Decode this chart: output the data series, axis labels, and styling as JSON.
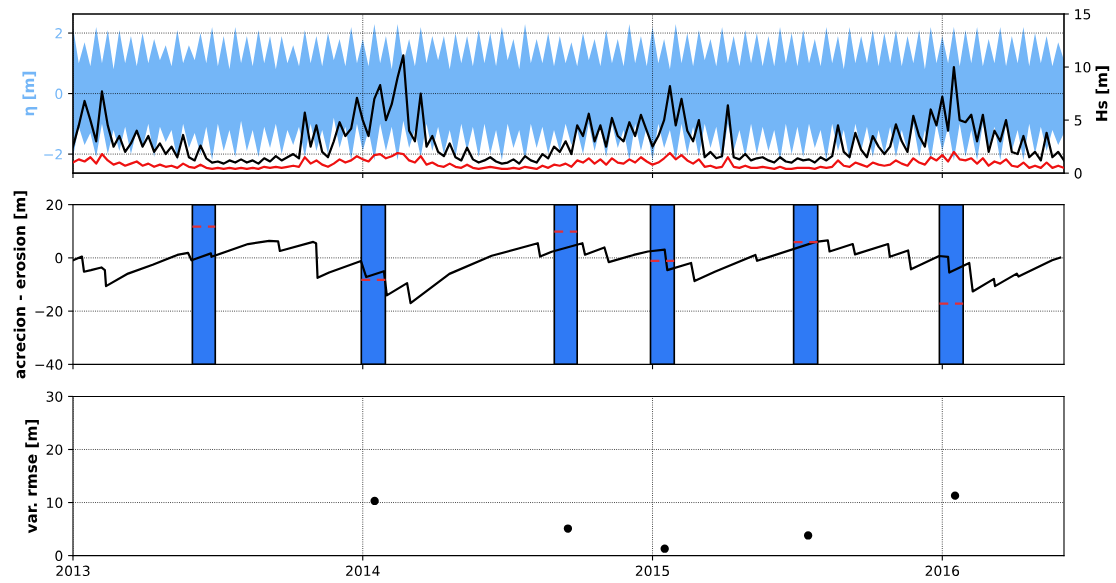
{
  "chart_data": [
    {
      "type": "line",
      "ylabel": "η [m]",
      "y2label": "Hs [m]",
      "xlim": [
        2013.0,
        2016.42
      ],
      "xticks": [
        2013,
        2014,
        2015,
        2016
      ],
      "ylim": [
        -2.63,
        2.63
      ],
      "yticks": [
        {
          "value": -2,
          "label": "−2"
        },
        0,
        2
      ],
      "y2lim": [
        0,
        15
      ],
      "y2ticks": [
        0,
        5,
        10,
        15
      ],
      "grid": true,
      "tick_labels": "y",
      "x": [
        2013.0,
        2013.02,
        2013.04,
        2013.06,
        2013.08,
        2013.1,
        2013.12,
        2013.14,
        2013.16,
        2013.18,
        2013.2,
        2013.22,
        2013.24,
        2013.26,
        2013.28,
        2013.3,
        2013.32,
        2013.34,
        2013.36,
        2013.38,
        2013.4,
        2013.42,
        2013.44,
        2013.46,
        2013.48,
        2013.5,
        2013.52,
        2013.54,
        2013.56,
        2013.58,
        2013.6,
        2013.62,
        2013.64,
        2013.66,
        2013.68,
        2013.7,
        2013.72,
        2013.74,
        2013.76,
        2013.78,
        2013.8,
        2013.82,
        2013.84,
        2013.86,
        2013.88,
        2013.9,
        2013.92,
        2013.94,
        2013.96,
        2013.98,
        2014.0,
        2014.02,
        2014.04,
        2014.06,
        2014.08,
        2014.1,
        2014.12,
        2014.14,
        2014.16,
        2014.18,
        2014.2,
        2014.22,
        2014.24,
        2014.26,
        2014.28,
        2014.3,
        2014.32,
        2014.34,
        2014.36,
        2014.38,
        2014.4,
        2014.42,
        2014.44,
        2014.46,
        2014.48,
        2014.5,
        2014.52,
        2014.54,
        2014.56,
        2014.58,
        2014.6,
        2014.62,
        2014.64,
        2014.66,
        2014.68,
        2014.7,
        2014.72,
        2014.74,
        2014.76,
        2014.78,
        2014.8,
        2014.82,
        2014.84,
        2014.86,
        2014.88,
        2014.9,
        2014.92,
        2014.94,
        2014.96,
        2014.98,
        2015.0,
        2015.02,
        2015.04,
        2015.06,
        2015.08,
        2015.1,
        2015.12,
        2015.14,
        2015.16,
        2015.18,
        2015.2,
        2015.22,
        2015.24,
        2015.26,
        2015.28,
        2015.3,
        2015.32,
        2015.34,
        2015.36,
        2015.38,
        2015.4,
        2015.42,
        2015.44,
        2015.46,
        2015.48,
        2015.5,
        2015.52,
        2015.54,
        2015.56,
        2015.58,
        2015.6,
        2015.62,
        2015.64,
        2015.66,
        2015.68,
        2015.7,
        2015.72,
        2015.74,
        2015.76,
        2015.78,
        2015.8,
        2015.82,
        2015.84,
        2015.86,
        2015.88,
        2015.9,
        2015.92,
        2015.94,
        2015.96,
        2015.98,
        2016.0,
        2016.02,
        2016.04,
        2016.06,
        2016.08,
        2016.1,
        2016.12,
        2016.14,
        2016.16,
        2016.18,
        2016.2,
        2016.22,
        2016.24,
        2016.26,
        2016.28,
        2016.3,
        2016.32,
        2016.34,
        2016.36,
        2016.38,
        2016.4,
        2016.42
      ],
      "series": [
        {
          "type": "area",
          "color": "#74b6f7",
          "values": [
            null,
            null,
            null,
            null,
            null,
            null,
            null,
            null,
            null,
            null,
            null,
            null,
            null,
            null,
            null,
            null,
            null,
            null,
            null,
            null,
            null,
            null,
            null,
            null,
            null,
            null,
            null,
            null,
            null,
            null,
            null,
            null,
            null,
            null,
            null,
            null,
            null,
            null,
            null,
            null,
            null,
            null,
            null,
            null,
            null,
            null,
            null,
            null,
            null,
            null,
            null,
            null,
            null,
            null,
            null,
            null,
            null,
            null,
            null,
            null,
            null,
            null,
            null,
            null,
            null,
            null,
            null,
            null,
            null,
            null,
            null,
            null,
            null,
            null,
            null,
            null,
            null,
            null,
            null,
            null,
            null,
            null,
            null,
            null,
            null,
            null,
            null,
            null,
            null,
            null,
            null,
            null,
            null,
            null,
            null,
            null,
            null,
            null,
            null,
            null,
            null,
            null,
            null,
            null,
            null,
            null,
            null,
            null,
            null,
            null,
            null,
            null,
            null,
            null,
            null,
            null,
            null,
            null,
            null,
            null,
            null,
            null,
            null,
            null,
            null,
            null,
            null,
            null,
            null,
            null,
            null,
            null,
            null,
            null,
            null,
            null,
            null,
            null,
            null,
            null,
            null,
            null,
            null,
            null,
            null,
            null,
            null,
            null,
            null,
            null,
            null,
            null,
            null,
            null,
            null,
            null,
            null,
            null,
            null,
            null,
            null,
            null,
            null,
            null,
            null,
            null,
            null,
            null,
            null,
            null,
            null,
            null
          ],
          "upper": [
            2.2,
            1.0,
            1.7,
            0.9,
            2.2,
            1.0,
            2.1,
            0.8,
            2.1,
            1.0,
            1.9,
            0.9,
            2.0,
            1.0,
            1.8,
            1.1,
            1.6,
            0.9,
            2.1,
            1.0,
            1.6,
            1.1,
            2.0,
            1.0,
            2.2,
            0.9,
            1.9,
            0.8,
            2.2,
            1.0,
            1.9,
            0.9,
            2.1,
            1.0,
            1.9,
            0.8,
            1.9,
            1.0,
            1.6,
            0.9,
            2.1,
            1.0,
            1.9,
            0.9,
            2.0,
            1.1,
            1.8,
            0.9,
            2.2,
            1.0,
            1.8,
            0.9,
            2.3,
            1.0,
            1.9,
            0.8,
            2.3,
            1.0,
            1.8,
            0.9,
            2.2,
            1.0,
            1.9,
            1.1,
            1.9,
            0.8,
            2.0,
            1.0,
            1.9,
            0.9,
            2.1,
            1.0,
            2.0,
            0.9,
            2.2,
            1.1,
            1.8,
            0.8,
            2.3,
            1.0,
            1.8,
            1.0,
            2.0,
            0.9,
            1.9,
            1.0,
            1.7,
            0.9,
            2.0,
            1.1,
            1.8,
            0.9,
            2.1,
            1.0,
            1.8,
            0.9,
            2.3,
            1.0,
            1.9,
            0.9,
            2.2,
            1.0,
            1.8,
            0.8,
            2.3,
            1.0,
            2.0,
            0.9,
            2.1,
            1.1,
            1.8,
            0.9,
            2.2,
            1.0,
            1.9,
            0.9,
            2.1,
            1.0,
            2.0,
            0.9,
            1.9,
            0.9,
            2.2,
            1.0,
            2.0,
            0.9,
            2.1,
            1.0,
            1.8,
            0.9,
            2.2,
            1.0,
            1.9,
            0.8,
            2.2,
            1.0,
            1.9,
            1.0,
            2.1,
            0.9,
            2.0,
            1.0,
            2.1,
            0.9,
            1.9,
            1.0,
            2.1,
            0.8,
            2.2,
            1.0,
            1.9,
            1.0,
            2.2,
            0.9,
            2.1,
            1.0,
            2.2,
            0.9,
            1.8,
            1.0,
            2.2,
            0.9,
            1.9,
            1.0,
            2.2,
            0.9,
            2.0,
            1.0,
            1.9,
            0.9,
            1.7,
            1.1
          ],
          "lower": [
            -2.1,
            -1.1,
            -1.7,
            -1.3,
            -2.1,
            -1.0,
            -2.0,
            -1.2,
            -1.9,
            -1.1,
            -2.0,
            -1.2,
            -1.8,
            -1.0,
            -2.1,
            -1.1,
            -1.6,
            -1.2,
            -2.2,
            -1.0,
            -1.8,
            -1.3,
            -2.0,
            -1.1,
            -2.2,
            -1.0,
            -1.9,
            -1.2,
            -2.1,
            -0.9,
            -1.9,
            -1.2,
            -2.1,
            -1.1,
            -1.8,
            -1.0,
            -2.0,
            -1.2,
            -1.7,
            -1.1,
            -2.1,
            -1.0,
            -1.9,
            -1.2,
            -2.0,
            -0.8,
            -1.8,
            -1.1,
            -2.2,
            -1.0,
            -1.9,
            -1.2,
            -2.2,
            -1.0,
            -1.9,
            -1.1,
            -2.2,
            -0.9,
            -1.8,
            -1.2,
            -2.1,
            -1.0,
            -1.9,
            -1.1,
            -2.0,
            -1.2,
            -2.1,
            -1.0,
            -1.9,
            -1.1,
            -2.1,
            -1.0,
            -2.0,
            -1.2,
            -2.2,
            -1.0,
            -1.8,
            -1.2,
            -2.2,
            -1.0,
            -1.8,
            -1.1,
            -2.0,
            -1.2,
            -1.9,
            -1.0,
            -1.7,
            -1.2,
            -2.0,
            -1.0,
            -1.9,
            -1.1,
            -2.1,
            -1.0,
            -1.8,
            -1.2,
            -2.2,
            -1.0,
            -1.9,
            -1.1,
            -2.2,
            -1.0,
            -1.8,
            -1.2,
            -2.2,
            -1.0,
            -2.0,
            -1.1,
            -2.1,
            -1.0,
            -1.8,
            -1.1,
            -2.2,
            -1.0,
            -1.9,
            -1.2,
            -2.1,
            -1.0,
            -2.0,
            -1.1,
            -1.9,
            -1.2,
            -2.2,
            -1.0,
            -2.0,
            -1.1,
            -2.1,
            -1.0,
            -1.8,
            -1.2,
            -2.2,
            -1.0,
            -1.9,
            -1.2,
            -2.2,
            -1.0,
            -1.9,
            -1.1,
            -2.1,
            -1.2,
            -2.0,
            -1.1,
            -2.1,
            -1.2,
            -1.9,
            -1.0,
            -2.1,
            -1.2,
            -2.2,
            -1.0,
            -1.9,
            -1.1,
            -2.2,
            -1.0,
            -2.1,
            -1.2,
            -2.2,
            -1.0,
            -1.8,
            -1.1,
            -2.2,
            -1.0,
            -1.9,
            -1.2,
            -2.2,
            -1.0,
            -2.0,
            -1.1,
            -1.9,
            -1.2,
            -1.7,
            -1.3
          ]
        },
        {
          "type": "line",
          "axis": "y2",
          "color": "#000000",
          "values": [
            2.5,
            4.5,
            6.8,
            5.0,
            3.0,
            7.7,
            4.5,
            2.5,
            3.5,
            2.0,
            2.8,
            4.0,
            2.5,
            3.5,
            2.0,
            2.8,
            1.8,
            2.5,
            1.5,
            3.6,
            1.5,
            1.2,
            2.6,
            1.4,
            1.0,
            1.1,
            0.9,
            1.2,
            1.0,
            1.3,
            1.0,
            1.2,
            0.9,
            1.4,
            1.1,
            1.6,
            1.2,
            1.5,
            1.8,
            1.4,
            5.7,
            2.5,
            4.5,
            2.0,
            1.5,
            3.0,
            4.8,
            3.5,
            4.2,
            7.1,
            5.0,
            3.5,
            7.0,
            8.3,
            5.0,
            6.5,
            9.0,
            11.1,
            4.0,
            3.0,
            7.5,
            2.5,
            3.5,
            2.0,
            1.6,
            2.8,
            1.5,
            1.2,
            2.4,
            1.3,
            1.0,
            1.2,
            1.5,
            1.1,
            0.9,
            1.0,
            1.3,
            0.9,
            1.6,
            1.2,
            1.0,
            1.8,
            1.4,
            2.5,
            2.0,
            3.0,
            1.8,
            4.5,
            3.5,
            5.6,
            3.0,
            4.5,
            2.5,
            5.2,
            3.5,
            3.0,
            4.8,
            3.5,
            5.5,
            4.0,
            2.5,
            3.5,
            5.0,
            8.2,
            4.5,
            7.0,
            4.0,
            3.0,
            5.0,
            1.5,
            2.0,
            1.4,
            1.6,
            6.4,
            1.5,
            1.3,
            1.8,
            1.2,
            1.4,
            1.5,
            1.2,
            1.0,
            1.5,
            1.1,
            1.0,
            1.4,
            1.2,
            1.3,
            1.0,
            1.5,
            1.2,
            1.6,
            4.5,
            2.0,
            1.5,
            3.8,
            2.2,
            1.5,
            3.5,
            2.5,
            1.8,
            2.5,
            4.6,
            3.0,
            2.0,
            5.4,
            3.5,
            2.5,
            6.0,
            4.5,
            7.2,
            4.0,
            10.0,
            5.0,
            4.8,
            5.5,
            3.0,
            5.5,
            2.0,
            4.0,
            3.0,
            5.0,
            2.0,
            1.8,
            3.5,
            1.5,
            2.0,
            1.2,
            3.8,
            1.5,
            2.0,
            1.2
          ]
        },
        {
          "type": "line",
          "axis": "y2",
          "color": "#ee1111",
          "values": [
            1.0,
            1.3,
            1.1,
            1.5,
            0.9,
            1.8,
            1.2,
            0.8,
            1.0,
            0.7,
            0.9,
            1.1,
            0.7,
            0.9,
            0.6,
            0.8,
            0.6,
            0.7,
            0.5,
            0.9,
            0.6,
            0.5,
            0.8,
            0.5,
            0.4,
            0.5,
            0.4,
            0.5,
            0.4,
            0.5,
            0.4,
            0.5,
            0.4,
            0.6,
            0.5,
            0.6,
            0.5,
            0.6,
            0.7,
            0.6,
            1.5,
            0.9,
            1.2,
            0.8,
            0.6,
            0.9,
            1.3,
            1.0,
            1.2,
            1.6,
            1.3,
            1.1,
            1.7,
            1.8,
            1.4,
            1.6,
            1.9,
            1.8,
            1.2,
            1.0,
            1.6,
            0.8,
            1.0,
            0.7,
            0.6,
            0.9,
            0.6,
            0.5,
            0.8,
            0.5,
            0.4,
            0.5,
            0.6,
            0.5,
            0.4,
            0.4,
            0.5,
            0.4,
            0.6,
            0.5,
            0.4,
            0.7,
            0.5,
            0.8,
            0.7,
            0.9,
            0.6,
            1.2,
            1.0,
            1.4,
            0.9,
            1.3,
            0.8,
            1.4,
            1.0,
            0.9,
            1.3,
            1.0,
            1.5,
            1.1,
            0.8,
            1.0,
            1.4,
            1.9,
            1.3,
            1.7,
            1.2,
            0.9,
            1.3,
            0.6,
            0.7,
            0.5,
            0.6,
            1.5,
            0.6,
            0.5,
            0.7,
            0.5,
            0.5,
            0.6,
            0.5,
            0.4,
            0.6,
            0.4,
            0.4,
            0.5,
            0.5,
            0.5,
            0.4,
            0.6,
            0.5,
            0.6,
            1.2,
            0.7,
            0.6,
            1.0,
            0.8,
            0.6,
            1.0,
            0.8,
            0.7,
            0.8,
            1.2,
            0.9,
            0.7,
            1.4,
            1.0,
            0.8,
            1.5,
            1.2,
            1.7,
            1.1,
            2.0,
            1.3,
            1.2,
            1.4,
            0.9,
            1.4,
            0.7,
            1.1,
            0.9,
            1.3,
            0.7,
            0.6,
            1.0,
            0.5,
            0.7,
            0.5,
            1.0,
            0.5,
            0.7,
            0.5
          ]
        }
      ]
    },
    {
      "type": "line",
      "ylabel": "acrecion - erosion [m]",
      "xlim": [
        2013.0,
        2016.42
      ],
      "xticks": [
        2013,
        2014,
        2015,
        2016
      ],
      "ylim": [
        -40,
        20
      ],
      "yticks": [
        {
          "value": -40,
          "label": "−40"
        },
        {
          "value": -20,
          "label": "−20"
        },
        0,
        20
      ],
      "tick_labels": "y",
      "ref_lines": [
        {
          "axis": "y",
          "value": 0,
          "color": "#000000",
          "line_style": "dotted"
        },
        {
          "axis": "y",
          "value": -20,
          "color": "#000000",
          "line_style": "dotted"
        }
      ],
      "bands": [
        {
          "axis": "x",
          "from": 2013.412,
          "to": 2013.491,
          "color": "#2f7af5"
        },
        {
          "axis": "x",
          "from": 2013.995,
          "to": 2014.078,
          "color": "#2f7af5"
        },
        {
          "axis": "x",
          "from": 2014.661,
          "to": 2014.74,
          "color": "#2f7af5"
        },
        {
          "axis": "x",
          "from": 2014.993,
          "to": 2015.075,
          "color": "#2f7af5"
        },
        {
          "axis": "x",
          "from": 2015.487,
          "to": 2015.57,
          "color": "#2f7af5"
        },
        {
          "axis": "x",
          "from": 2015.99,
          "to": 2016.072,
          "color": "#2f7af5"
        }
      ],
      "series": [
        {
          "type": "line",
          "color": "#000000",
          "x": [
            2013.0,
            2013.031,
            2013.038,
            2013.062,
            2013.098,
            2013.11,
            2013.114,
            2013.19,
            2013.275,
            2013.36,
            2013.397,
            2013.409,
            2013.476,
            2013.478,
            2013.604,
            2013.677,
            2013.708,
            2013.714,
            2013.829,
            2013.839,
            2013.844,
            2013.884,
            2013.994,
            2014.012,
            2014.073,
            2014.083,
            2014.153,
            2014.165,
            2014.299,
            2014.445,
            2014.604,
            2014.612,
            2014.652,
            2014.758,
            2014.767,
            2014.834,
            2014.849,
            2014.935,
            2014.984,
            2015.042,
            2015.051,
            2015.133,
            2015.145,
            2015.215,
            2015.355,
            2015.361,
            2015.563,
            2015.605,
            2015.611,
            2015.691,
            2015.699,
            2015.813,
            2015.819,
            2015.882,
            2015.892,
            2015.989,
            2016.02,
            2016.024,
            2016.093,
            2016.105,
            2016.178,
            2016.182,
            2016.257,
            2016.263,
            2016.379,
            2016.407
          ],
          "values": [
            -0.9,
            0.5,
            -5.2,
            -4.6,
            -3.6,
            -4.6,
            -10.6,
            -5.9,
            -2.6,
            1.1,
            1.9,
            -0.9,
            1.7,
            0.4,
            5.2,
            6.4,
            6.2,
            2.6,
            6.0,
            5.5,
            -7.5,
            -5.5,
            -1.2,
            -7.2,
            -5.0,
            -14.1,
            -9.5,
            -17.0,
            -6.0,
            0.8,
            5.5,
            0.5,
            2.3,
            5.5,
            1.2,
            3.9,
            -1.6,
            1.1,
            2.4,
            3.1,
            -4.6,
            -1.9,
            -8.7,
            -5.2,
            1.1,
            -1.1,
            6.0,
            6.6,
            2.4,
            5.2,
            1.3,
            5.2,
            0.4,
            2.8,
            -4.3,
            0.7,
            0.4,
            -5.5,
            -1.9,
            -12.6,
            -7.9,
            -10.6,
            -5.9,
            -7.0,
            -0.9,
            0.1
          ]
        },
        {
          "type": "line",
          "color": "#e0303a",
          "line_style": "dashed",
          "x": [
            2013.412,
            2013.491
          ],
          "values": [
            11.7,
            11.7
          ]
        },
        {
          "type": "line",
          "color": "#e0303a",
          "line_style": "dashed",
          "x": [
            2013.995,
            2014.078
          ],
          "values": [
            -8.3,
            -8.3
          ]
        },
        {
          "type": "line",
          "color": "#e0303a",
          "line_style": "dashed",
          "x": [
            2014.661,
            2014.74
          ],
          "values": [
            9.9,
            9.9
          ]
        },
        {
          "type": "line",
          "color": "#e0303a",
          "line_style": "dashed",
          "x": [
            2014.993,
            2015.075
          ],
          "values": [
            -1.1,
            -1.1
          ]
        },
        {
          "type": "line",
          "color": "#e0303a",
          "line_style": "dashed",
          "x": [
            2015.487,
            2015.57
          ],
          "values": [
            5.9,
            5.9
          ]
        },
        {
          "type": "line",
          "color": "#e0303a",
          "line_style": "dashed",
          "x": [
            2015.99,
            2016.072
          ],
          "values": [
            -17.2,
            -17.2
          ]
        }
      ]
    },
    {
      "type": "scatter",
      "ylabel": "var. rmse [m]",
      "xlim": [
        2013.0,
        2016.42
      ],
      "xticks": [
        2013,
        2014,
        2015,
        2016
      ],
      "ylim": [
        0,
        30
      ],
      "yticks": [
        0,
        10,
        20,
        30
      ],
      "grid": true,
      "marker": "circle",
      "series": [
        {
          "color": "#000000",
          "x": [
            2014.041,
            2014.708,
            2015.042,
            2015.537,
            2016.044
          ],
          "values": [
            10.3,
            5.1,
            1.3,
            3.8,
            11.3
          ]
        }
      ]
    }
  ]
}
